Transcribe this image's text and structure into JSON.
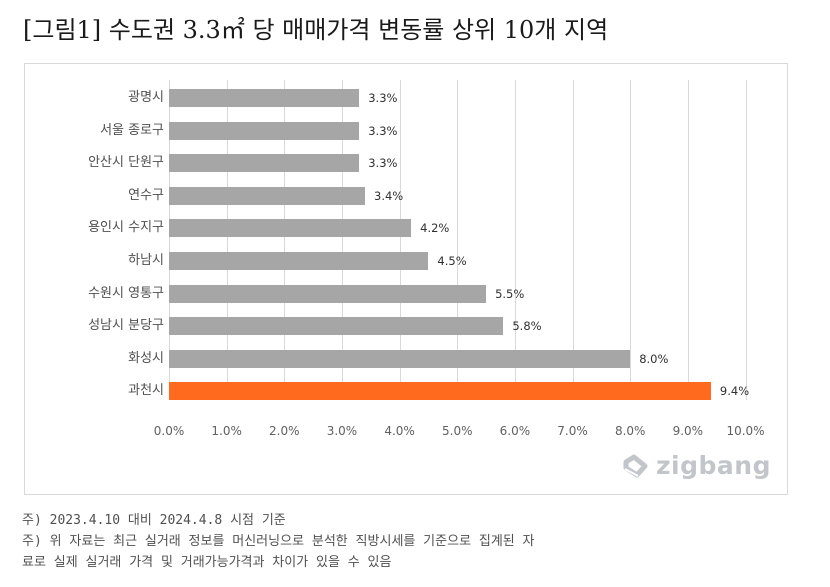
{
  "title": "[그림1] 수도권 3.3㎡ 당 매매가격 변동률 상위 10개 지역",
  "colors": {
    "default_bar": "#a6a6a6",
    "highlight_bar": "#ff6a1f",
    "grid": "#d9d9d9"
  },
  "chart_data": {
    "type": "bar",
    "orientation": "horizontal",
    "title": "[그림1] 수도권 3.3㎡ 당 매매가격 변동률 상위 10개 지역",
    "xlabel": "",
    "ylabel": "",
    "categories": [
      "광명시",
      "서울 종로구",
      "안산시 단원구",
      "연수구",
      "용인시 수지구",
      "하남시",
      "수원시 영통구",
      "성남시 분당구",
      "화성시",
      "과천시"
    ],
    "values": [
      3.3,
      3.3,
      3.3,
      3.4,
      4.2,
      4.5,
      5.5,
      5.8,
      8.0,
      9.4
    ],
    "value_labels": [
      "3.3%",
      "3.3%",
      "3.3%",
      "3.4%",
      "4.2%",
      "4.5%",
      "5.5%",
      "5.8%",
      "8.0%",
      "9.4%"
    ],
    "highlight_index": 9,
    "xlim": [
      0,
      10
    ],
    "x_ticks": [
      "0.0%",
      "1.0%",
      "2.0%",
      "3.0%",
      "4.0%",
      "5.0%",
      "6.0%",
      "7.0%",
      "8.0%",
      "9.0%",
      "10.0%"
    ],
    "grid": "vertical",
    "legend": "none",
    "unit": "%"
  },
  "logo": {
    "text": "zigbang",
    "icon": "zigbang-logo-icon"
  },
  "notes": [
    "주) 2023.4.10 대비 2024.4.8 시점 기준",
    "주) 위 자료는 최근 실거래 정보를 머신러닝으로 분석한 직방시세를 기준으로 집계된 자",
    "료로 실제 실거래 가격 및 거래가능가격과 차이가 있을 수 있음"
  ]
}
